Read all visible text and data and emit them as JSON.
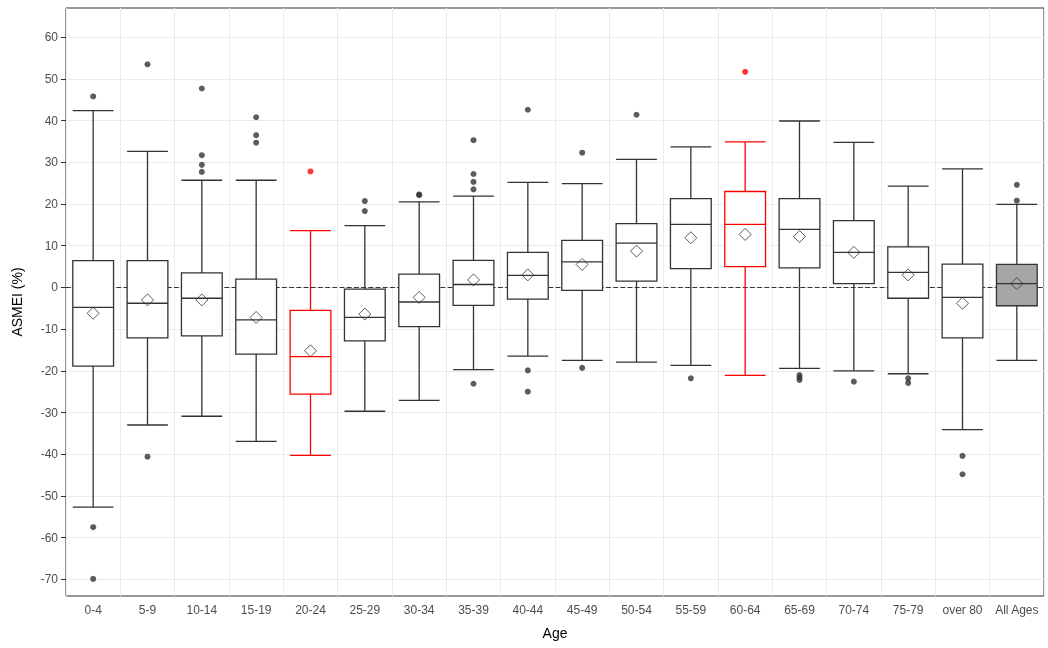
{
  "chart_data": {
    "type": "box",
    "xlabel": "Age",
    "ylabel": "ASMEI (%)",
    "categories": [
      "0-4",
      "5-9",
      "10-14",
      "15-19",
      "20-24",
      "25-29",
      "30-34",
      "35-39",
      "40-44",
      "45-49",
      "50-54",
      "55-59",
      "60-64",
      "65-69",
      "70-74",
      "75-79",
      "over 80",
      "All Ages"
    ],
    "colors": [
      "#333333",
      "#333333",
      "#333333",
      "#333333",
      "#ff0000",
      "#333333",
      "#333333",
      "#333333",
      "#333333",
      "#333333",
      "#333333",
      "#333333",
      "#ff0000",
      "#333333",
      "#333333",
      "#333333",
      "#333333",
      "#a6a6a6"
    ],
    "boxes": [
      {
        "low": -52.7,
        "q1": -18.9,
        "median": -4.8,
        "q3": 6.4,
        "high": 42.4,
        "mean": -6.2,
        "outliers": [
          45.8,
          -57.5,
          -69.9
        ]
      },
      {
        "low": -33,
        "q1": -12.1,
        "median": -3.8,
        "q3": 6.4,
        "high": 32.6,
        "mean": -3.0,
        "outliers": [
          53.5,
          -40.6
        ]
      },
      {
        "low": -30.9,
        "q1": -11.6,
        "median": -2.6,
        "q3": 3.5,
        "high": 25.7,
        "mean": -3.0,
        "outliers": [
          47.7,
          31.7,
          29.4,
          27.7
        ]
      },
      {
        "low": -36.9,
        "q1": -16,
        "median": -7.8,
        "q3": 2,
        "high": 25.7,
        "mean": -7.2,
        "outliers": [
          40.8,
          36.5,
          34.7
        ]
      },
      {
        "low": -40.3,
        "q1": -25.6,
        "median": -16.6,
        "q3": -5.5,
        "high": 13.6,
        "mean": -15.2,
        "outliers": [
          27.8
        ]
      },
      {
        "low": -29.7,
        "q1": -12.8,
        "median": -7.2,
        "q3": -0.4,
        "high": 14.8,
        "mean": -6.4,
        "outliers": [
          20.7,
          18.3
        ]
      },
      {
        "low": -27.1,
        "q1": -9.4,
        "median": -3.5,
        "q3": 3.2,
        "high": 20.5,
        "mean": -2.4,
        "outliers": [
          22.1,
          22.3
        ]
      },
      {
        "low": -19.7,
        "q1": -4.3,
        "median": 0.7,
        "q3": 6.5,
        "high": 21.9,
        "mean": 1.8,
        "outliers": [
          35.3,
          27.2,
          25.3,
          23.5,
          -23.1
        ]
      },
      {
        "low": -16.5,
        "q1": -2.8,
        "median": 2.9,
        "q3": 8.4,
        "high": 25.2,
        "mean": 3.0,
        "outliers": [
          42.6,
          -19.9,
          -25
        ]
      },
      {
        "low": -17.5,
        "q1": -0.7,
        "median": 6.1,
        "q3": 11.3,
        "high": 24.9,
        "mean": 5.5,
        "outliers": [
          32.3,
          -19.3
        ]
      },
      {
        "low": -17.9,
        "q1": 1.5,
        "median": 10.6,
        "q3": 15.3,
        "high": 30.7,
        "mean": 8.7,
        "outliers": [
          41.4
        ]
      },
      {
        "low": -18.7,
        "q1": 4.5,
        "median": 15.1,
        "q3": 21.3,
        "high": 33.7,
        "mean": 11.9,
        "outliers": [
          -21.8
        ]
      },
      {
        "low": -21.1,
        "q1": 5,
        "median": 15.1,
        "q3": 23,
        "high": 34.9,
        "mean": 12.7,
        "outliers": [
          51.7
        ]
      },
      {
        "low": -19.4,
        "q1": 4.7,
        "median": 13.9,
        "q3": 21.3,
        "high": 39.9,
        "mean": 12.2,
        "outliers": [
          -21,
          -21.6,
          -22.2
        ]
      },
      {
        "low": -20,
        "q1": 0.9,
        "median": 8.4,
        "q3": 16,
        "high": 34.8,
        "mean": 8.4,
        "outliers": [
          -22.6
        ]
      },
      {
        "low": -20.7,
        "q1": -2.6,
        "median": 3.6,
        "q3": 9.7,
        "high": 24.3,
        "mean": 3.0,
        "outliers": [
          -21.8,
          -22.9
        ]
      },
      {
        "low": -34.1,
        "q1": -12.1,
        "median": -2.4,
        "q3": 5.6,
        "high": 28.4,
        "mean": -3.8,
        "outliers": [
          -40.4,
          -44.8
        ]
      },
      {
        "low": -17.5,
        "q1": -4.4,
        "median": 0.9,
        "q3": 5.5,
        "high": 19.9,
        "mean": 0.9,
        "outliers": [
          24.6,
          20.8
        ]
      }
    ],
    "ylim": [
      -74,
      67
    ],
    "yticks": [
      -70,
      -60,
      -50,
      -40,
      -30,
      -20,
      -10,
      0,
      10,
      20,
      30,
      40,
      50,
      60
    ],
    "ref_lines": [
      {
        "axis": "y",
        "value": 0,
        "color": "#333333",
        "line_style": "dashed"
      }
    ],
    "grid": true,
    "marker": "diamond"
  }
}
